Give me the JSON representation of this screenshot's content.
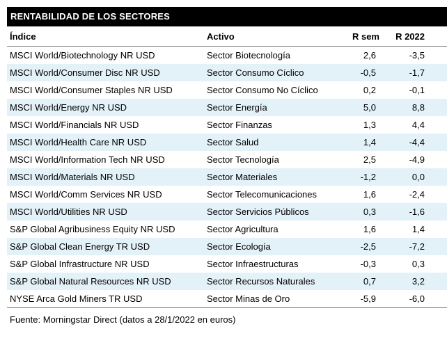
{
  "title": "RENTABILIDAD DE LOS SECTORES",
  "table": {
    "columns": [
      "Índice",
      "Activo",
      "R sem",
      "R 2022"
    ],
    "rows": [
      {
        "indice": "MSCI World/Biotechnology NR USD",
        "activo": "Sector Biotecnología",
        "r_sem": "2,6",
        "r_2022": "-3,5"
      },
      {
        "indice": "MSCI World/Consumer Disc NR USD",
        "activo": "Sector Consumo Cíclico",
        "r_sem": "-0,5",
        "r_2022": "-1,7"
      },
      {
        "indice": "MSCI World/Consumer Staples NR USD",
        "activo": "Sector Consumo No Cíclico",
        "r_sem": "0,2",
        "r_2022": "-0,1"
      },
      {
        "indice": "MSCI World/Energy NR USD",
        "activo": "Sector Energía",
        "r_sem": "5,0",
        "r_2022": "8,8"
      },
      {
        "indice": "MSCI World/Financials NR USD",
        "activo": "Sector Finanzas",
        "r_sem": "1,3",
        "r_2022": "4,4"
      },
      {
        "indice": "MSCI World/Health Care NR USD",
        "activo": "Sector Salud",
        "r_sem": "1,4",
        "r_2022": "-4,4"
      },
      {
        "indice": "MSCI World/Information Tech NR USD",
        "activo": "Sector Tecnología",
        "r_sem": "2,5",
        "r_2022": "-4,9"
      },
      {
        "indice": "MSCI World/Materials NR USD",
        "activo": "Sector Materiales",
        "r_sem": "-1,2",
        "r_2022": "0,0"
      },
      {
        "indice": "MSCI World/Comm Services NR USD",
        "activo": "Sector Telecomunicaciones",
        "r_sem": "1,6",
        "r_2022": "-2,4"
      },
      {
        "indice": "MSCI World/Utilities NR USD",
        "activo": "Sector Servicios Públicos",
        "r_sem": "0,3",
        "r_2022": "-1,6"
      },
      {
        "indice": "S&P Global Agribusiness Equity NR USD",
        "activo": "Sector Agricultura",
        "r_sem": "1,6",
        "r_2022": "1,4"
      },
      {
        "indice": "S&P Global Clean Energy TR USD",
        "activo": "Sector Ecología",
        "r_sem": "-2,5",
        "r_2022": "-7,2"
      },
      {
        "indice": "S&P Global Infrastructure NR USD",
        "activo": "Sector Infraestructuras",
        "r_sem": "-0,3",
        "r_2022": "0,3"
      },
      {
        "indice": "S&P Global Natural Resources NR USD",
        "activo": "Sector Recursos Naturales",
        "r_sem": "0,7",
        "r_2022": "3,2"
      },
      {
        "indice": "NYSE Arca Gold Miners TR USD",
        "activo": "Sector Minas de Oro",
        "r_sem": "-5,9",
        "r_2022": "-6,0"
      }
    ]
  },
  "footer": "Fuente: Morningstar Direct (datos a 28/1/2022 en euros)",
  "colors": {
    "title_bg": "#000000",
    "title_fg": "#ffffff",
    "zebra_row": "#e3f1f8",
    "rule": "#808080",
    "text": "#000000"
  }
}
